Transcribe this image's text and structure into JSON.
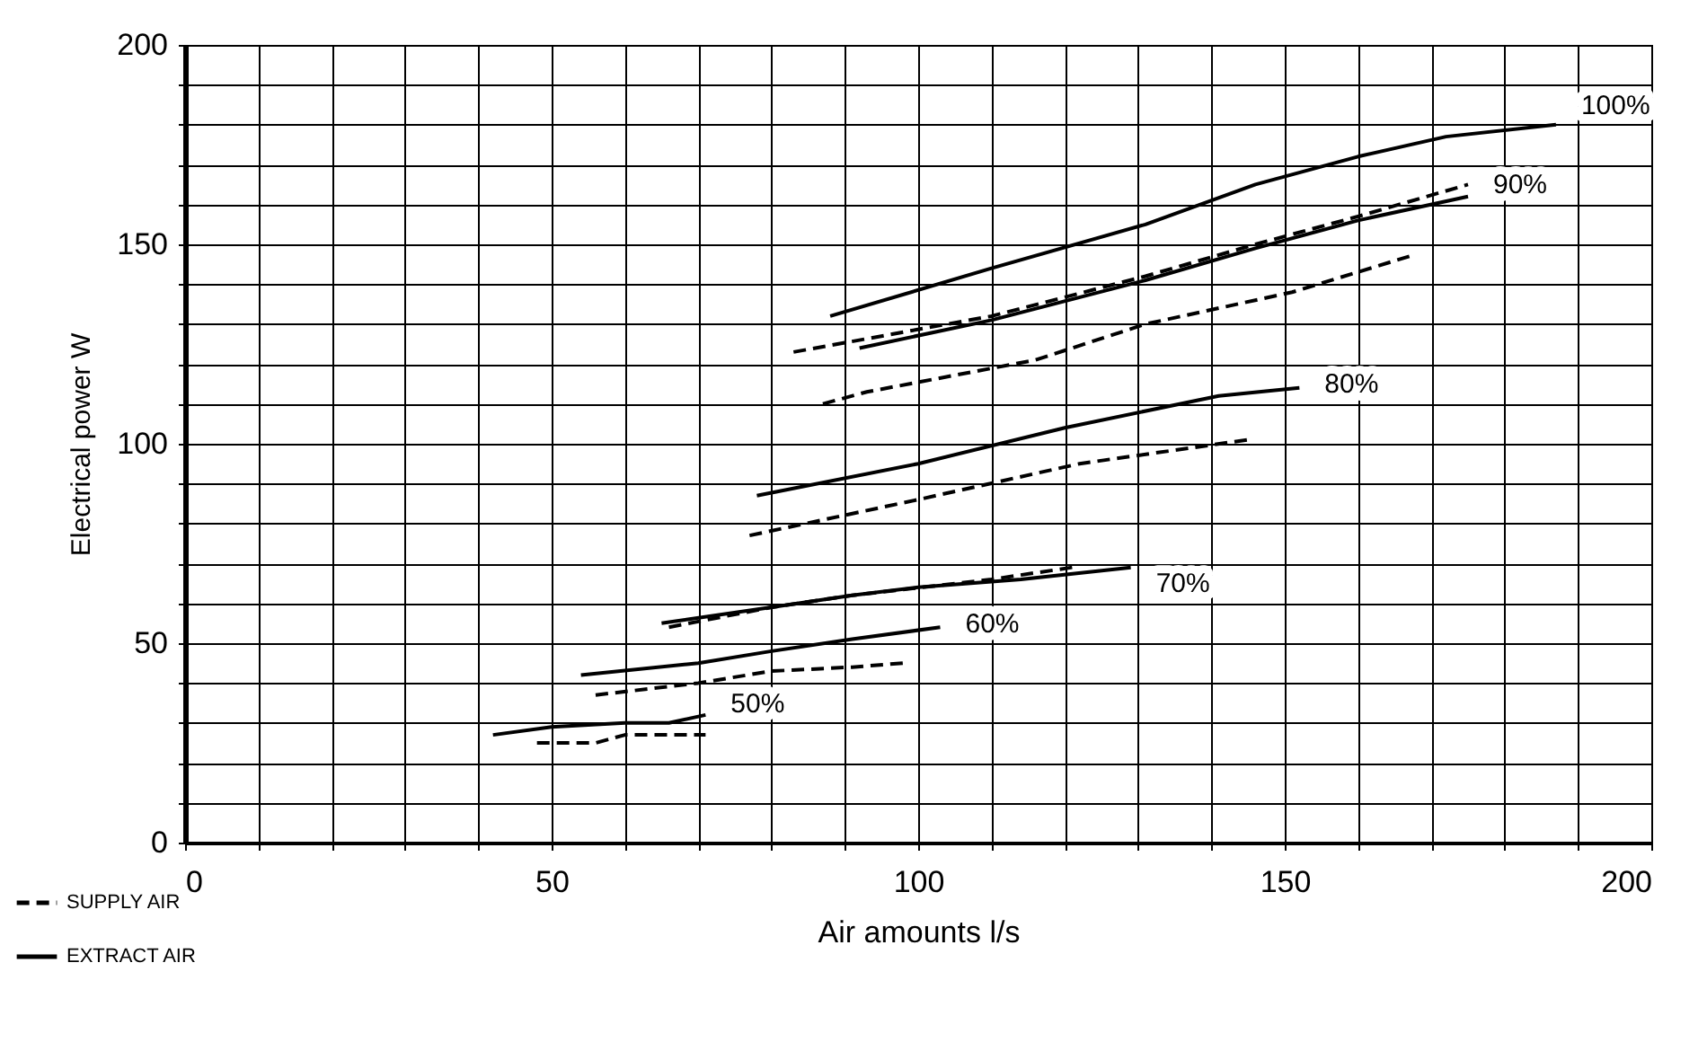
{
  "chart_data": {
    "type": "line",
    "xlabel": "Air amounts l/s",
    "ylabel": "Electrical power W",
    "xlim": [
      0,
      200
    ],
    "ylim": [
      0,
      200
    ],
    "xticks": [
      0,
      {
        "value": 10,
        "label": null
      },
      {
        "value": 20,
        "label": null
      },
      {
        "value": 30,
        "label": null
      },
      {
        "value": 40,
        "label": null
      },
      50,
      {
        "value": 60,
        "label": null
      },
      {
        "value": 70,
        "label": null
      },
      {
        "value": 80,
        "label": null
      },
      {
        "value": 90,
        "label": null
      },
      100,
      {
        "value": 110,
        "label": null
      },
      {
        "value": 120,
        "label": null
      },
      {
        "value": 130,
        "label": null
      },
      {
        "value": 140,
        "label": null
      },
      150,
      {
        "value": 160,
        "label": null
      },
      {
        "value": 170,
        "label": null
      },
      {
        "value": 180,
        "label": null
      },
      {
        "value": 190,
        "label": null
      },
      200
    ],
    "yticks": [
      0,
      {
        "value": 10,
        "label": null
      },
      {
        "value": 20,
        "label": null
      },
      {
        "value": 30,
        "label": null
      },
      {
        "value": 40,
        "label": null
      },
      50,
      {
        "value": 60,
        "label": null
      },
      {
        "value": 70,
        "label": null
      },
      {
        "value": 80,
        "label": null
      },
      {
        "value": 90,
        "label": null
      },
      100,
      {
        "value": 110,
        "label": null
      },
      {
        "value": 120,
        "label": null
      },
      {
        "value": 130,
        "label": null
      },
      {
        "value": 140,
        "label": null
      },
      150,
      {
        "value": 160,
        "label": null
      },
      {
        "value": 170,
        "label": null
      },
      {
        "value": 180,
        "label": null
      },
      {
        "value": 190,
        "label": null
      },
      200
    ],
    "grid": true,
    "legend": "bottom left",
    "series": [
      {
        "name": "SUPPLY AIR",
        "color": "#000000",
        "line_style": "dashed",
        "x": [
          83,
          110,
          131,
          146,
          160,
          175
        ],
        "values": [
          123,
          132,
          142,
          150,
          157,
          165
        ]
      },
      {
        "name": "EXTRACT AIR",
        "color": "#000000",
        "line_style": "solid",
        "x": [
          88,
          110,
          131,
          146,
          160,
          172,
          187
        ],
        "values": [
          132,
          144,
          155,
          165,
          172,
          177,
          180
        ]
      },
      {
        "color": "#000000",
        "line_style": "solid",
        "x": [
          92,
          110,
          131,
          146,
          160,
          175
        ],
        "values": [
          124,
          131,
          141,
          149,
          156,
          162
        ]
      },
      {
        "color": "#000000",
        "line_style": "dashed",
        "x": [
          87,
          93,
          116,
          131,
          151,
          167
        ],
        "values": [
          110,
          113,
          121,
          130,
          138,
          147
        ]
      },
      {
        "color": "#000000",
        "line_style": "solid",
        "x": [
          78,
          100,
          120,
          141,
          152
        ],
        "values": [
          87,
          95,
          104,
          112,
          114
        ]
      },
      {
        "color": "#000000",
        "line_style": "dashed",
        "x": [
          77,
          100,
          122,
          145
        ],
        "values": [
          77,
          86,
          95,
          101
        ]
      },
      {
        "color": "#000000",
        "line_style": "solid",
        "x": [
          65,
          80,
          91,
          100,
          114,
          129
        ],
        "values": [
          55,
          59,
          62,
          64,
          66,
          69
        ]
      },
      {
        "color": "#000000",
        "line_style": "dashed",
        "x": [
          66,
          80,
          91,
          110,
          121
        ],
        "values": [
          54,
          59,
          62,
          66,
          69
        ]
      },
      {
        "color": "#000000",
        "line_style": "solid",
        "x": [
          54,
          70,
          80,
          91,
          103
        ],
        "values": [
          42,
          45,
          48,
          51,
          54
        ]
      },
      {
        "color": "#000000",
        "line_style": "dashed",
        "x": [
          56,
          70,
          80,
          91,
          98
        ],
        "values": [
          37,
          40,
          43,
          44,
          45
        ]
      },
      {
        "color": "#000000",
        "line_style": "solid",
        "x": [
          42,
          50,
          60,
          66,
          71
        ],
        "values": [
          27,
          29,
          30,
          30,
          32
        ]
      },
      {
        "color": "#000000",
        "line_style": "dashed",
        "x": [
          48,
          56,
          60,
          71
        ],
        "values": [
          25,
          25,
          27,
          27
        ]
      }
    ],
    "annotations": [
      {
        "text": "100%",
        "x": 187,
        "y": 180
      },
      {
        "text": "90%",
        "x": 175,
        "y": 162
      },
      {
        "text": "80%",
        "x": 152,
        "y": 114
      },
      {
        "text": "70%",
        "x": 129,
        "y": 69
      },
      {
        "text": "60%",
        "x": 103,
        "y": 54
      },
      {
        "text": "50%",
        "x": 71,
        "y": 32
      }
    ]
  }
}
